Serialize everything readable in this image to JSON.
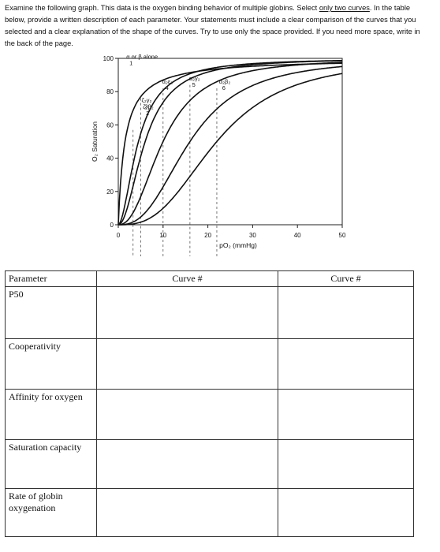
{
  "instructions": {
    "part1": "Examine the following graph. This data is the oxygen binding behavior of multiple globins. Select ",
    "underlined": "only two curves",
    "part2": ". In the table below, provide a written description of each parameter. Your statements must include a clear comparison of the curves that you selected and a clear explanation of the shape of the curves. Try to use only the space provided. If you need more space, write in the back of the page."
  },
  "chart_data": {
    "type": "line",
    "xlabel": "pO₂ (mmHg)",
    "ylabel": "O₂ Saturation",
    "xlim": [
      0,
      50
    ],
    "ylim": [
      0,
      100
    ],
    "x_ticks": [
      "0",
      "10",
      "20",
      "30",
      "40",
      "50"
    ],
    "y_ticks": [
      "0",
      "20",
      "40",
      "60",
      "80",
      "100"
    ],
    "series": [
      {
        "id": "1",
        "label": "α or β alone",
        "p50": 1.5,
        "n": 1.0
      },
      {
        "id": "2",
        "label": "ζ₂β₂",
        "p50": 4.5,
        "n": 1.8
      },
      {
        "id": "3",
        "label": "ζ₂γ₂",
        "p50": 6.0,
        "n": 2.0
      },
      {
        "id": "4",
        "label": "α₂ε₂",
        "p50": 10.0,
        "n": 2.3
      },
      {
        "id": "5",
        "label": "α₂γ₂",
        "p50": 16.0,
        "n": 2.6
      },
      {
        "id": "6",
        "label": "α₂β₂",
        "p50": 22.0,
        "n": 2.8
      }
    ]
  },
  "table": {
    "headers": [
      "Parameter",
      "Curve #",
      "Curve #"
    ],
    "rows": [
      {
        "label": "P50"
      },
      {
        "label": "Cooperativity"
      },
      {
        "label": "Affinity for oxygen"
      },
      {
        "label": "Saturation capacity"
      },
      {
        "label_line1": "Rate of globin",
        "label_line2": "oxygenation"
      }
    ]
  }
}
